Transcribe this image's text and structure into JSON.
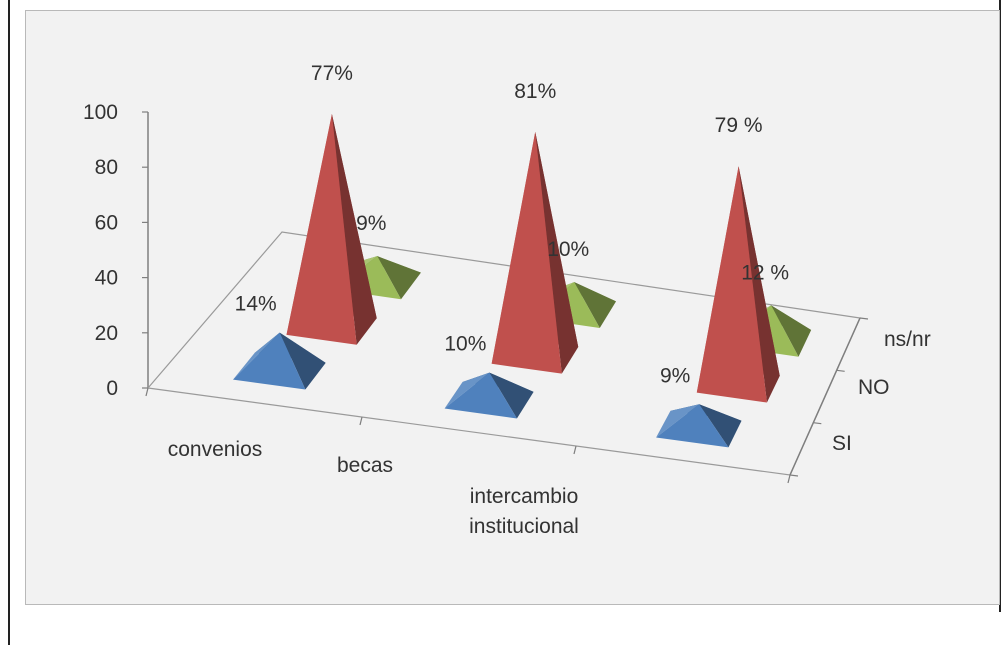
{
  "chart_data": {
    "type": "bar",
    "shape": "3d-pyramid",
    "categories": [
      "convenios",
      "becas",
      "intercambio institucional"
    ],
    "series": [
      {
        "name": "SI",
        "values": [
          14,
          10,
          9
        ],
        "labels": [
          "14%",
          "10%",
          "9%"
        ],
        "color": "#4f81bd"
      },
      {
        "name": "NO",
        "values": [
          77,
          81,
          79
        ],
        "labels": [
          "77%",
          "81%",
          "79 %"
        ],
        "color": "#c0504d"
      },
      {
        "name": "ns/nr",
        "values": [
          9,
          10,
          12
        ],
        "labels": [
          "9%",
          "10%",
          "12 %"
        ],
        "color": "#9bbb59"
      }
    ],
    "yticks": [
      "0",
      "20",
      "40",
      "60",
      "80",
      "100"
    ],
    "ylim": [
      0,
      100
    ],
    "category_lines": [
      [
        "convenios"
      ],
      [
        "becas"
      ],
      [
        "intercambio",
        "institucional"
      ]
    ]
  }
}
